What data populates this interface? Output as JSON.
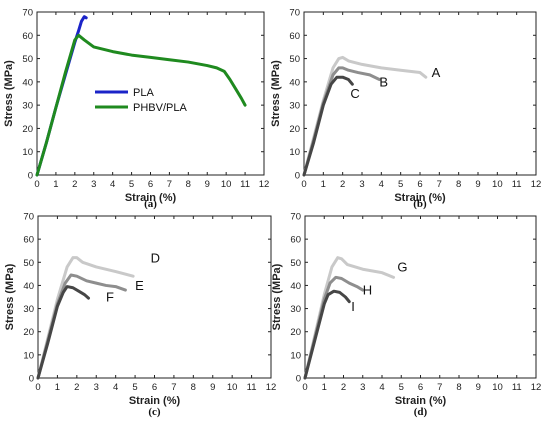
{
  "chart_data": [
    {
      "panel": "(a)",
      "type": "line",
      "xlabel": "Strain (%)",
      "ylabel": "Stress (MPa)",
      "xlim": [
        0,
        12
      ],
      "ylim": [
        0,
        70
      ],
      "xticks": [
        0,
        1,
        2,
        3,
        4,
        5,
        6,
        7,
        8,
        9,
        10,
        11,
        12
      ],
      "yticks": [
        0,
        10,
        20,
        30,
        40,
        50,
        60,
        70
      ],
      "legend": "left-center",
      "series": [
        {
          "name": "PLA",
          "color": "#1b24c8",
          "x": [
            0,
            0.5,
            1.0,
            1.5,
            2.0,
            2.2,
            2.35,
            2.5,
            2.6
          ],
          "y": [
            0,
            14,
            29,
            43,
            57,
            62,
            66,
            68,
            67.5
          ]
        },
        {
          "name": "PHBV/PLA",
          "color": "#1f8a1f",
          "x": [
            0,
            0.5,
            1.0,
            1.5,
            2.0,
            2.2,
            2.5,
            3.0,
            4.0,
            5.0,
            6.0,
            7.0,
            8.0,
            9.0,
            9.5,
            9.9,
            10.2,
            10.5,
            10.8,
            11.0
          ],
          "y": [
            0,
            14,
            29,
            44,
            58,
            60,
            58,
            55,
            53,
            51.5,
            50.5,
            49.5,
            48.5,
            47,
            46,
            44.5,
            41,
            37,
            33,
            30
          ]
        }
      ]
    },
    {
      "panel": "(b)",
      "type": "line",
      "xlabel": "Strain (%)",
      "ylabel": "Stress (MPa)",
      "xlim": [
        0,
        12
      ],
      "ylim": [
        0,
        70
      ],
      "xticks": [
        0,
        1,
        2,
        3,
        4,
        5,
        6,
        7,
        8,
        9,
        10,
        11,
        12
      ],
      "yticks": [
        0,
        10,
        20,
        30,
        40,
        50,
        60,
        70
      ],
      "series": [
        {
          "label": "A",
          "color": "#c9c9c9",
          "x": [
            0,
            0.5,
            1.0,
            1.5,
            1.8,
            2.0,
            2.3,
            3.0,
            4.0,
            5.0,
            6.0,
            6.3
          ],
          "y": [
            0,
            16,
            32,
            46,
            50,
            50.5,
            49,
            47.5,
            46,
            45,
            44,
            42
          ]
        },
        {
          "label": "B",
          "color": "#8e8e8e",
          "x": [
            0,
            0.5,
            1.0,
            1.5,
            1.8,
            2.0,
            2.3,
            2.8,
            3.4,
            3.9
          ],
          "y": [
            0,
            15,
            31,
            43,
            46,
            46,
            45,
            44,
            43,
            41
          ]
        },
        {
          "label": "C",
          "color": "#464646",
          "x": [
            0,
            0.5,
            1.0,
            1.4,
            1.7,
            2.0,
            2.3,
            2.5
          ],
          "y": [
            0,
            14,
            30,
            39,
            42,
            42,
            41,
            39
          ]
        }
      ],
      "annotations": [
        "A",
        "B",
        "C"
      ]
    },
    {
      "panel": "(c)",
      "type": "line",
      "xlabel": "Strain (%)",
      "ylabel": "Stress (MPa)",
      "xlim": [
        0,
        12
      ],
      "ylim": [
        0,
        70
      ],
      "xticks": [
        0,
        1,
        2,
        3,
        4,
        5,
        6,
        7,
        8,
        9,
        10,
        11,
        12
      ],
      "yticks": [
        0,
        10,
        20,
        30,
        40,
        50,
        60,
        70
      ],
      "series": [
        {
          "label": "D",
          "color": "#c9c9c9",
          "x": [
            0,
            0.5,
            1.0,
            1.5,
            1.8,
            2.0,
            2.3,
            3.0,
            4.0,
            4.9
          ],
          "y": [
            0,
            17,
            34,
            48,
            52,
            52,
            50,
            48,
            46,
            44
          ]
        },
        {
          "label": "E",
          "color": "#8e8e8e",
          "x": [
            0,
            0.5,
            1.0,
            1.4,
            1.7,
            2.0,
            2.5,
            3.0,
            3.5,
            4.0,
            4.5
          ],
          "y": [
            0,
            16,
            32,
            41,
            44.5,
            44,
            42,
            41,
            40,
            39.5,
            38
          ]
        },
        {
          "label": "F",
          "color": "#464646",
          "x": [
            0,
            0.5,
            1.0,
            1.3,
            1.5,
            1.8,
            2.1,
            2.4,
            2.6
          ],
          "y": [
            0,
            15,
            31,
            37,
            39.5,
            39,
            37.5,
            36,
            34.5
          ]
        }
      ],
      "annotations": [
        "D",
        "E",
        "F"
      ]
    },
    {
      "panel": "(d)",
      "type": "line",
      "xlabel": "Strain (%)",
      "ylabel": "Stress (MPa)",
      "xlim": [
        0,
        12
      ],
      "ylim": [
        0,
        70
      ],
      "xticks": [
        0,
        1,
        2,
        3,
        4,
        5,
        6,
        7,
        8,
        9,
        10,
        11,
        12
      ],
      "yticks": [
        0,
        10,
        20,
        30,
        40,
        50,
        60,
        70
      ],
      "series": [
        {
          "label": "G",
          "color": "#c9c9c9",
          "x": [
            0,
            0.5,
            1.0,
            1.4,
            1.7,
            1.9,
            2.2,
            3.0,
            4.0,
            4.6
          ],
          "y": [
            0,
            18,
            36,
            48,
            52,
            51.5,
            49,
            47,
            45.5,
            43.5
          ]
        },
        {
          "label": "H",
          "color": "#8e8e8e",
          "x": [
            0,
            0.5,
            1.0,
            1.3,
            1.6,
            1.9,
            2.3,
            2.7,
            3.0
          ],
          "y": [
            0,
            17,
            34,
            41,
            43.5,
            43,
            41,
            39.5,
            38
          ]
        },
        {
          "label": "I",
          "color": "#464646",
          "x": [
            0,
            0.5,
            1.0,
            1.2,
            1.5,
            1.8,
            2.1,
            2.3
          ],
          "y": [
            0,
            16,
            32,
            36,
            37.5,
            37,
            35,
            33
          ]
        }
      ],
      "annotations": [
        "G",
        "H",
        "I"
      ]
    }
  ]
}
